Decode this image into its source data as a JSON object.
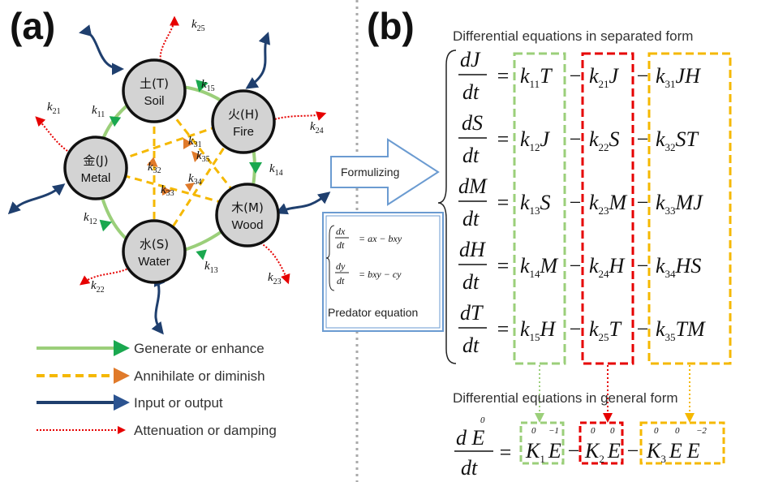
{
  "panel_a": {
    "label": "(a)",
    "nodes": {
      "soil": {
        "symbol": "土",
        "letter": "(T)",
        "name": "Soil"
      },
      "fire": {
        "symbol": "火",
        "letter": "(H)",
        "name": "Fire"
      },
      "metal": {
        "symbol": "金",
        "letter": "(J)",
        "name": "Metal"
      },
      "wood": {
        "symbol": "木",
        "letter": "(M)",
        "name": "Wood"
      },
      "water": {
        "symbol": "水",
        "letter": "(S)",
        "name": "Water"
      }
    },
    "rates": {
      "k11": "11",
      "k12": "12",
      "k13": "13",
      "k14": "14",
      "k15": "15",
      "k21": "21",
      "k22": "22",
      "k23": "23",
      "k24": "24",
      "k25": "25",
      "k31": "31",
      "k32": "32",
      "k33": "33",
      "k34": "34",
      "k35": "35"
    },
    "k_letter": "k",
    "legend": [
      {
        "label": "Generate or enhance",
        "color": "#9bcf7a",
        "arrow": "#1aa84f"
      },
      {
        "label": "Annihilate or diminish",
        "color": "#f5b800",
        "arrow": "#e07a2a"
      },
      {
        "label": "Input or output",
        "color": "#1f3f6e",
        "arrow": "#2b5390"
      },
      {
        "label": "Attenuation or damping",
        "color": "#e60000",
        "arrow": "#e60000"
      }
    ]
  },
  "middle": {
    "formulizing_label": "Formulizing",
    "predator": {
      "eq1_num": "dx",
      "eq1_den": "dt",
      "eq1_rhs": "= ax − bxy",
      "eq2_num": "dy",
      "eq2_den": "dt",
      "eq2_rhs": "= bxy − cy",
      "label": "Predator equation"
    }
  },
  "panel_b": {
    "label": "(b)",
    "heading_separated": "Differential equations in separated form",
    "heading_general": "Differential equations in general form",
    "equations": [
      {
        "num": "dJ",
        "den": "dt",
        "t1": "k",
        "t1s": "11",
        "t1v": "T",
        "t2": "k",
        "t2s": "21",
        "t2v": "J",
        "t3": "k",
        "t3s": "31",
        "t3v": "JH"
      },
      {
        "num": "dS",
        "den": "dt",
        "t1": "k",
        "t1s": "12",
        "t1v": "J",
        "t2": "k",
        "t2s": "22",
        "t2v": "S",
        "t3": "k",
        "t3s": "32",
        "t3v": "ST"
      },
      {
        "num": "dM",
        "den": "dt",
        "t1": "k",
        "t1s": "13",
        "t1v": "S",
        "t2": "k",
        "t2s": "23",
        "t2v": "M",
        "t3": "k",
        "t3s": "33",
        "t3v": "MJ"
      },
      {
        "num": "dH",
        "den": "dt",
        "t1": "k",
        "t1s": "14",
        "t1v": "M",
        "t2": "k",
        "t2s": "24",
        "t2v": "H",
        "t3": "k",
        "t3s": "34",
        "t3v": "HS"
      },
      {
        "num": "dT",
        "den": "dt",
        "t1": "k",
        "t1s": "15",
        "t1v": "H",
        "t2": "k",
        "t2s": "25",
        "t2v": "T",
        "t3": "k",
        "t3s": "35",
        "t3v": "TM"
      }
    ],
    "general": {
      "lhs_num": "d E",
      "lhs_sup": "0",
      "lhs_den": "dt",
      "k1": "K",
      "k1s": "1",
      "k1v": "E",
      "k1sup_k": "0",
      "k1sup_e": "−1",
      "k2": "K",
      "k2s": "2",
      "k2v": "E",
      "k2sup_k": "0",
      "k2sup_e": "0",
      "k3": "K",
      "k3s": "3",
      "k3v1": "E",
      "k3v2": "E",
      "k3sup_k": "0",
      "k3sup_e1": "0",
      "k3sup_e2": "−2"
    },
    "colors": {
      "green": "#9bcf7a",
      "red": "#e60000",
      "yellow": "#f5b800"
    }
  }
}
